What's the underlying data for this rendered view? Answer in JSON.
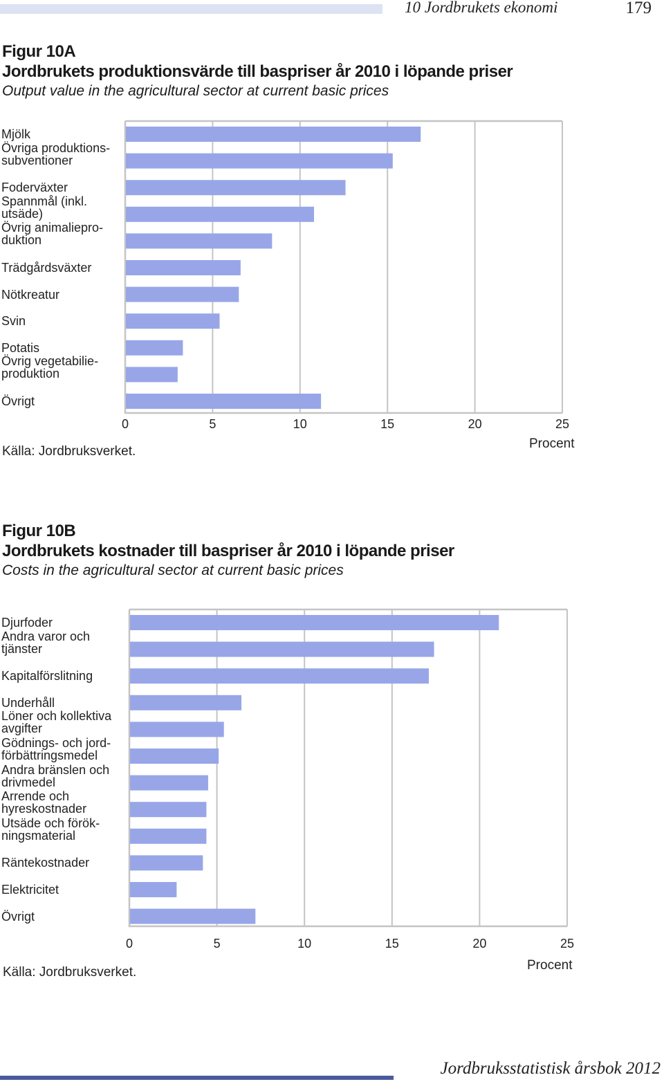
{
  "header": {
    "chapter": "10   Jordbrukets ekonomi",
    "page_number": "179"
  },
  "footer": {
    "text": "Jordbruksstatistisk årsbok 2012"
  },
  "colors": {
    "bar": "#98a6e8",
    "grid": "#c4c4c4",
    "header_bar": "#dde3f3",
    "footer_bar": "#4b5a9e"
  },
  "figA": {
    "number": "Figur 10A",
    "title": "Jordbrukets produktionsvärde till baspriser år 2010 i löpande priser",
    "subtitle": "Output value in the agricultural sector at current basic prices",
    "source": "Källa: Jordbruksverket.",
    "unit": "Procent"
  },
  "figB": {
    "number": "Figur 10B",
    "title": "Jordbrukets kostnader till baspriser år 2010 i löpande priser",
    "subtitle": "Costs in the agricultural sector at current basic prices",
    "source": "Källa: Jordbruksverket.",
    "unit": "Procent"
  },
  "chart_data": [
    {
      "type": "bar",
      "orientation": "horizontal",
      "categories": [
        "Mjölk",
        "Övriga produktions-subventioner",
        "Foderväxter",
        "Spannmål (inkl. utsäde)",
        "Övrig animalieproduktion",
        "Trädgårdsväxter",
        "Nötkreatur",
        "Svin",
        "Potatis",
        "Övrig vegetabilieproduktion",
        "Övrigt"
      ],
      "category_lines": [
        [
          "Mjölk"
        ],
        [
          "Övriga produktions-",
          "subventioner"
        ],
        [
          "Foderväxter"
        ],
        [
          "Spannmål (inkl.",
          "utsäde)"
        ],
        [
          "Övrig animaliepro-",
          "duktion"
        ],
        [
          "Trädgårdsväxter"
        ],
        [
          "Nötkreatur"
        ],
        [
          "Svin"
        ],
        [
          "Potatis"
        ],
        [
          "Övrig vegetabilie-",
          "produktion"
        ],
        [
          "Övrigt"
        ]
      ],
      "values": [
        16.9,
        15.3,
        12.6,
        10.8,
        8.4,
        6.6,
        6.5,
        5.4,
        3.3,
        3.0,
        11.2
      ],
      "xlim": [
        0,
        25
      ],
      "xticks": [
        "0",
        "5",
        "10",
        "15",
        "20",
        "25"
      ],
      "xlabel": "Procent",
      "grid": true
    },
    {
      "type": "bar",
      "orientation": "horizontal",
      "categories": [
        "Djurfoder",
        "Andra varor och tjänster",
        "Kapitalförslitning",
        "Underhåll",
        "Löner och kollektiva avgifter",
        "Gödnings- och jordförbättringsmedel",
        "Andra bränslen och drivmedel",
        "Arrende och hyreskostnader",
        "Utsäde och förökningsmaterial",
        "Räntekostnader",
        "Elektricitet",
        "Övrigt"
      ],
      "category_lines": [
        [
          "Djurfoder"
        ],
        [
          "Andra varor och",
          "tjänster"
        ],
        [
          "Kapitalförslitning"
        ],
        [
          "Underhåll"
        ],
        [
          "Löner och kollektiva",
          "avgifter"
        ],
        [
          "Gödnings- och jord-",
          "förbättringsmedel"
        ],
        [
          "Andra bränslen och",
          "drivmedel"
        ],
        [
          "Arrende och",
          "hyreskostnader"
        ],
        [
          "Utsäde och förök-",
          "ningsmaterial"
        ],
        [
          "Räntekostnader"
        ],
        [
          "Elektricitet"
        ],
        [
          "Övrigt"
        ]
      ],
      "values": [
        21.1,
        17.4,
        17.1,
        6.4,
        5.4,
        5.1,
        4.5,
        4.4,
        4.4,
        4.2,
        2.7,
        7.2
      ],
      "xlim": [
        0,
        25
      ],
      "xticks": [
        "0",
        "5",
        "10",
        "15",
        "20",
        "25"
      ],
      "xlabel": "Procent",
      "grid": true
    }
  ]
}
